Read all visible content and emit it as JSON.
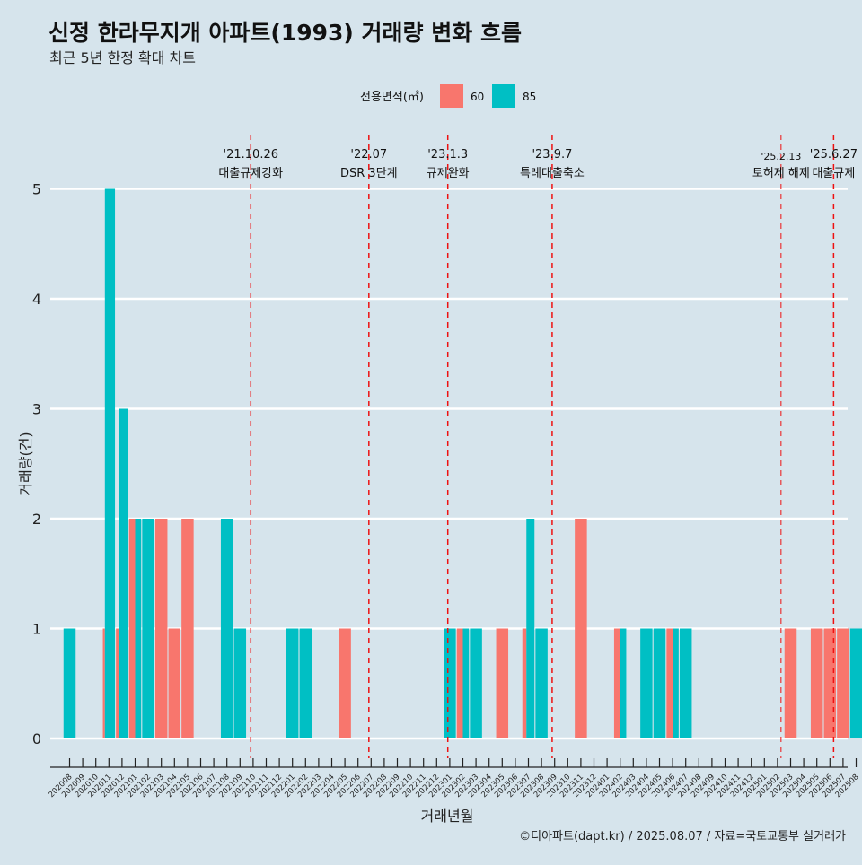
{
  "title": "신정 한라무지개 아파트(1993) 거래량 변화 흐름",
  "subtitle": "최근 5년 한정 확대 차트",
  "caption": "©디아파트(dapt.kr) / 2025.08.07 / 자료=국토교통부 실거래가",
  "legend": {
    "title": "전용면적(㎡)",
    "items": [
      {
        "label": "60",
        "color": "#F8766D"
      },
      {
        "label": "85",
        "color": "#00BFC4"
      }
    ]
  },
  "chart_data": {
    "type": "bar",
    "xlabel": "거래년월",
    "ylabel": "거래량(건)",
    "ylim": [
      0,
      5
    ],
    "yticks": [
      0,
      1,
      2,
      3,
      4,
      5
    ],
    "grid": true,
    "legend_position": "top",
    "categories": [
      "202008",
      "202009",
      "202010",
      "202011",
      "202012",
      "202101",
      "202102",
      "202103",
      "202104",
      "202105",
      "202106",
      "202107",
      "202108",
      "202109",
      "202110",
      "202111",
      "202112",
      "202201",
      "202202",
      "202203",
      "202204",
      "202205",
      "202206",
      "202207",
      "202208",
      "202209",
      "202210",
      "202211",
      "202212",
      "202301",
      "202302",
      "202303",
      "202304",
      "202305",
      "202306",
      "202307",
      "202308",
      "202309",
      "202310",
      "202311",
      "202312",
      "202401",
      "202402",
      "202403",
      "202404",
      "202405",
      "202406",
      "202407",
      "202408",
      "202409",
      "202410",
      "202411",
      "202412",
      "202501",
      "202502",
      "202503",
      "202504",
      "202505",
      "202506",
      "202507",
      "202508"
    ],
    "series": [
      {
        "name": "60",
        "color": "#F8766D",
        "values": [
          0,
          0,
          0,
          1,
          1,
          2,
          0,
          2,
          1,
          2,
          0,
          0,
          0,
          0,
          0,
          0,
          0,
          0,
          0,
          0,
          0,
          1,
          0,
          0,
          0,
          0,
          0,
          0,
          0,
          0,
          1,
          0,
          0,
          1,
          0,
          1,
          0,
          0,
          0,
          2,
          0,
          0,
          1,
          0,
          0,
          0,
          1,
          0,
          0,
          0,
          0,
          0,
          0,
          0,
          0,
          1,
          0,
          1,
          1,
          1,
          0
        ]
      },
      {
        "name": "85",
        "color": "#00BFC4",
        "values": [
          1,
          0,
          0,
          5,
          3,
          2,
          2,
          0,
          0,
          0,
          0,
          0,
          2,
          1,
          0,
          0,
          0,
          1,
          1,
          0,
          0,
          0,
          0,
          0,
          0,
          0,
          0,
          0,
          0,
          1,
          1,
          1,
          0,
          0,
          0,
          2,
          1,
          0,
          0,
          0,
          0,
          0,
          1,
          0,
          1,
          1,
          1,
          1,
          0,
          0,
          0,
          0,
          0,
          0,
          0,
          0,
          0,
          0,
          0,
          0,
          1
        ]
      }
    ],
    "events": [
      {
        "date": "'21.10.26",
        "label": "대출규제강화"
      },
      {
        "date": "'22.07",
        "label": "DSR 3단계"
      },
      {
        "date": "'23.1.3",
        "label": "규제완화"
      },
      {
        "date": "'23.9.7",
        "label": "특례대출축소"
      },
      {
        "date": "'25.2.13",
        "label": "토허제 해제"
      },
      {
        "date": "'25.6.27",
        "label": "대출규제"
      }
    ]
  }
}
